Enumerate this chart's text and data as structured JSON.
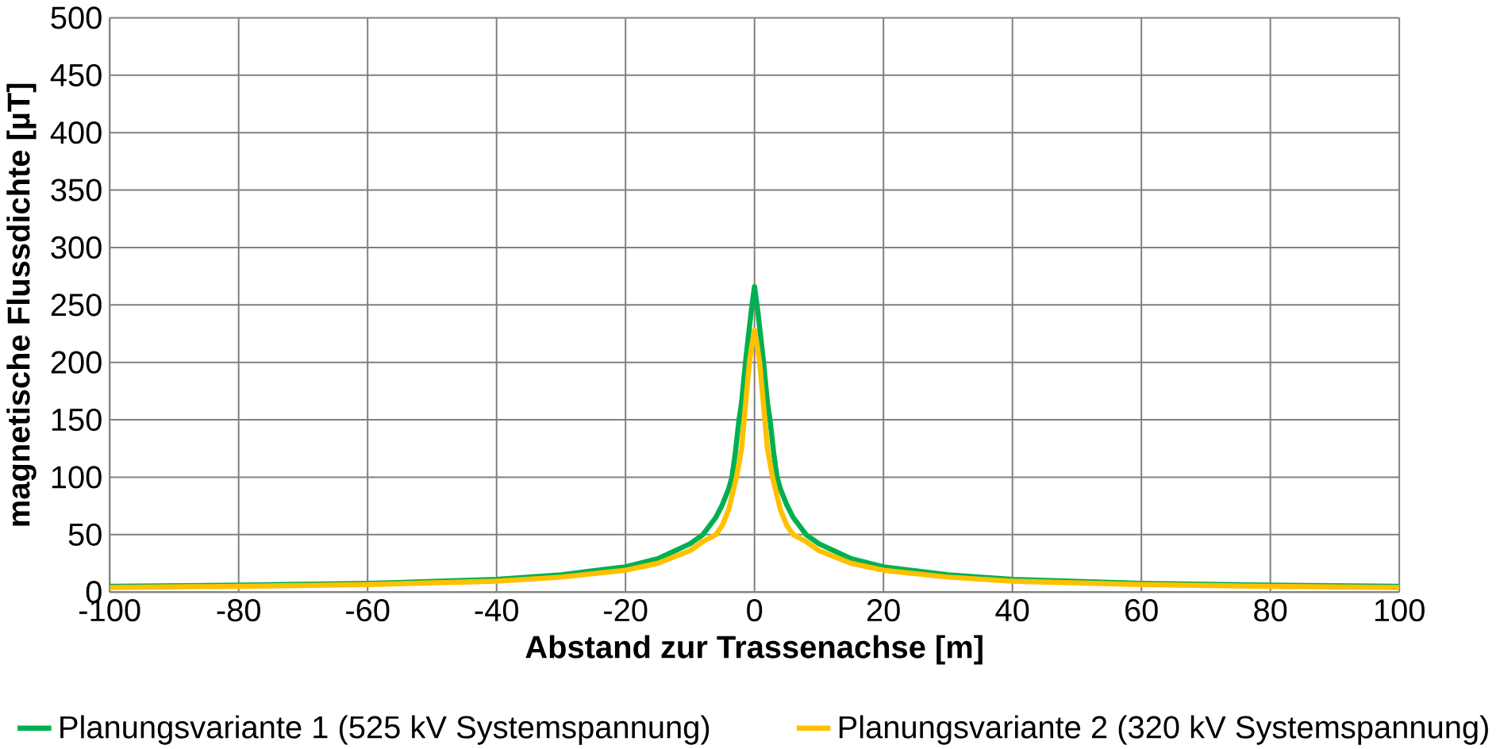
{
  "chart_data": {
    "type": "line",
    "xlabel": "Abstand zur Trassenachse [m]",
    "ylabel": "magnetische Flussdichte [µT]",
    "xlim": [
      -100,
      100
    ],
    "ylim": [
      0,
      500
    ],
    "xticks": [
      -100,
      -80,
      -60,
      -40,
      -20,
      0,
      20,
      40,
      60,
      80,
      100
    ],
    "yticks": [
      0,
      50,
      100,
      150,
      200,
      250,
      300,
      350,
      400,
      450,
      500
    ],
    "grid": true,
    "legend": "bottom",
    "marker": "none",
    "line_style": "solid",
    "series": [
      {
        "name": "Planungsvariante 1 (525 kV Systemspannung)",
        "color": "#00b050",
        "x": [
          -100,
          -80,
          -60,
          -40,
          -30,
          -20,
          -15,
          -10,
          -8,
          -6,
          -5,
          -4,
          -3.5,
          -3,
          -2.4,
          -2,
          -1.4,
          -1,
          -0.5,
          0,
          0.5,
          1,
          1.4,
          2,
          2.4,
          3,
          3.5,
          4,
          5,
          6,
          8,
          10,
          15,
          20,
          30,
          40,
          60,
          80,
          100
        ],
        "values": [
          5,
          6,
          7.5,
          11,
          15,
          22,
          29,
          42,
          50,
          65,
          76,
          90,
          100,
          120,
          150,
          165,
          200,
          220,
          245,
          266,
          245,
          220,
          200,
          165,
          150,
          120,
          100,
          90,
          76,
          65,
          50,
          42,
          29,
          22,
          15,
          11,
          7.5,
          6,
          5
        ]
      },
      {
        "name": "Planungsvariante 2 (320 kV Systemspannung)",
        "color": "#ffc000",
        "x": [
          -100,
          -80,
          -60,
          -40,
          -30,
          -20,
          -15,
          -10,
          -8,
          -6,
          -5,
          -4,
          -2.8,
          -2,
          -1.6,
          -1.2,
          -0.8,
          -0.4,
          0,
          0.4,
          0.8,
          1.2,
          1.6,
          2,
          2.8,
          4,
          5,
          6,
          8,
          10,
          15,
          20,
          30,
          40,
          60,
          80,
          100
        ],
        "values": [
          4,
          5,
          6.5,
          9.5,
          13,
          19,
          25,
          36,
          44,
          50,
          58,
          72,
          100,
          125,
          150,
          175,
          200,
          215,
          228,
          215,
          200,
          175,
          150,
          125,
          100,
          72,
          58,
          50,
          44,
          36,
          25,
          19,
          13,
          9.5,
          6.5,
          5,
          4
        ]
      }
    ]
  }
}
